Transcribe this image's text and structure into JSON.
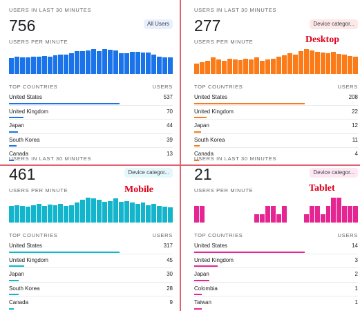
{
  "panels": [
    {
      "cap_users": "USERS IN LAST 30 MINUTES",
      "count": "756",
      "chip": "All Users",
      "chip_bg": "#e8f0fe",
      "cap_per_minute": "USERS PER MINUTE",
      "color": "#1a73e8",
      "bar_values": [
        55,
        58,
        56,
        57,
        59,
        58,
        62,
        60,
        63,
        65,
        66,
        70,
        77,
        78,
        80,
        85,
        79,
        84,
        82,
        80,
        72,
        70,
        76,
        75,
        73,
        74,
        65,
        60,
        57,
        56
      ],
      "th_countries": "TOP COUNTRIES",
      "th_users": "USERS",
      "countries": [
        {
          "name": "United States",
          "value": "537",
          "frac": 1.0
        },
        {
          "name": "United Kingdom",
          "value": "70",
          "frac": 0.13
        },
        {
          "name": "Japan",
          "value": "44",
          "frac": 0.08
        },
        {
          "name": "South Korea",
          "value": "39",
          "frac": 0.07
        },
        {
          "name": "Canada",
          "value": "13",
          "frac": 0.025
        }
      ]
    },
    {
      "cap_users": "USERS IN LAST 30 MINUTES",
      "count": "277",
      "chip": "Device categor...",
      "chip_bg": "#fce8e6",
      "cap_per_minute": "USERS PER MINUTE",
      "color": "#fa7b17",
      "bar_values": [
        35,
        40,
        45,
        55,
        48,
        45,
        52,
        50,
        47,
        52,
        50,
        55,
        45,
        48,
        52,
        58,
        62,
        70,
        65,
        78,
        84,
        80,
        75,
        72,
        70,
        74,
        68,
        65,
        60,
        58
      ],
      "th_countries": "TOP COUNTRIES",
      "th_users": "USERS",
      "countries": [
        {
          "name": "United States",
          "value": "208",
          "frac": 1.0
        },
        {
          "name": "United Kingdom",
          "value": "22",
          "frac": 0.11
        },
        {
          "name": "Japan",
          "value": "12",
          "frac": 0.06
        },
        {
          "name": "South Korea",
          "value": "11",
          "frac": 0.05
        },
        {
          "name": "Canada",
          "value": "4",
          "frac": 0.02
        }
      ]
    },
    {
      "cap_users": "USERS IN LAST 30 MINUTES",
      "count": "461",
      "chip": "Device categor...",
      "chip_bg": "#e4f7fb",
      "cap_per_minute": "USERS PER MINUTE",
      "color": "#12b5cb",
      "bar_values": [
        40,
        42,
        40,
        38,
        42,
        45,
        40,
        44,
        42,
        45,
        40,
        42,
        48,
        55,
        60,
        58,
        55,
        50,
        52,
        58,
        50,
        52,
        48,
        45,
        48,
        42,
        45,
        40,
        38,
        36
      ],
      "th_countries": "TOP COUNTRIES",
      "th_users": "USERS",
      "countries": [
        {
          "name": "United States",
          "value": "317",
          "frac": 1.0
        },
        {
          "name": "United Kingdom",
          "value": "45",
          "frac": 0.14
        },
        {
          "name": "Japan",
          "value": "30",
          "frac": 0.09
        },
        {
          "name": "South Korea",
          "value": "28",
          "frac": 0.085
        },
        {
          "name": "Canada",
          "value": "9",
          "frac": 0.03
        }
      ]
    },
    {
      "cap_users": "USERS IN LAST 30 MINUTES",
      "count": "21",
      "chip": "Device categor...",
      "chip_bg": "#fde7f3",
      "cap_per_minute": "USERS PER MINUTE",
      "color": "#e52592",
      "bar_values": [
        2,
        2,
        0,
        0,
        0,
        0,
        0,
        0,
        0,
        0,
        0,
        1,
        1,
        2,
        2,
        1,
        2,
        0,
        0,
        0,
        1,
        2,
        2,
        1,
        2,
        3,
        3,
        2,
        2,
        2
      ],
      "th_countries": "TOP COUNTRIES",
      "th_users": "USERS",
      "countries": [
        {
          "name": "United States",
          "value": "14",
          "frac": 1.0
        },
        {
          "name": "United Kingdom",
          "value": "3",
          "frac": 0.21
        },
        {
          "name": "Japan",
          "value": "2",
          "frac": 0.14
        },
        {
          "name": "Colombia",
          "value": "1",
          "frac": 0.07
        },
        {
          "name": "Taiwan",
          "value": "1",
          "frac": 0.07
        }
      ]
    }
  ],
  "annotations": {
    "desktop": "Desktop",
    "mobile": "Mobile",
    "tablet": "Tablet"
  }
}
